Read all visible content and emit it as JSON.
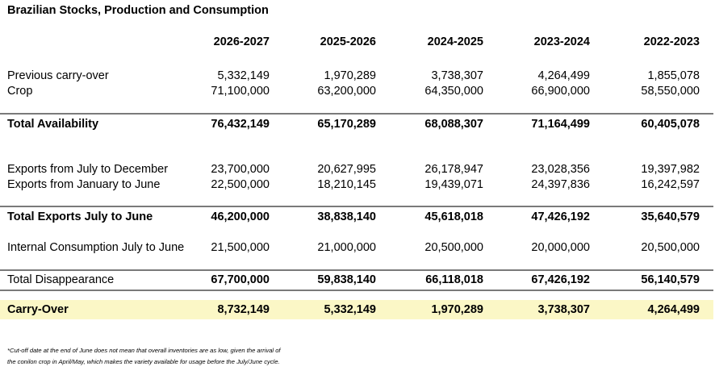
{
  "title": "Brazilian Stocks, Production and Consumption",
  "columns": [
    "2026-2027",
    "2025-2026",
    "2024-2025",
    "2023-2024",
    "2022-2023"
  ],
  "rows": {
    "previous_carry_over": {
      "label": "Previous carry-over",
      "values": [
        "5,332,149",
        "1,970,289",
        "3,738,307",
        "4,264,499",
        "1,855,078"
      ]
    },
    "crop": {
      "label": "Crop",
      "values": [
        "71,100,000",
        "63,200,000",
        "64,350,000",
        "66,900,000",
        "58,550,000"
      ]
    },
    "total_availability": {
      "label": "Total Availability",
      "values": [
        "76,432,149",
        "65,170,289",
        "68,088,307",
        "71,164,499",
        "60,405,078"
      ]
    },
    "exports_jul_dec": {
      "label": "Exports from July to December",
      "values": [
        "23,700,000",
        "20,627,995",
        "26,178,947",
        "23,028,356",
        "19,397,982"
      ]
    },
    "exports_jan_jun": {
      "label": "Exports from January to June",
      "values": [
        "22,500,000",
        "18,210,145",
        "19,439,071",
        "24,397,836",
        "16,242,597"
      ]
    },
    "total_exports": {
      "label": "Total Exports July to June",
      "values": [
        "46,200,000",
        "38,838,140",
        "45,618,018",
        "47,426,192",
        "35,640,579"
      ]
    },
    "internal_consumption": {
      "label": "Internal Consumption July to June",
      "values": [
        "21,500,000",
        "21,000,000",
        "20,500,000",
        "20,000,000",
        "20,500,000"
      ]
    },
    "total_disappearance": {
      "label": "Total Disappearance",
      "values": [
        "67,700,000",
        "59,838,140",
        "66,118,018",
        "67,426,192",
        "56,140,579"
      ]
    },
    "carry_over": {
      "label": "Carry-Over",
      "values": [
        "8,732,149",
        "5,332,149",
        "1,970,289",
        "3,738,307",
        "4,264,499"
      ]
    }
  },
  "footnote": {
    "line1": "*Cut-off date at the end of June does not mean that overall inventories are as low, given the arrival of",
    "line2": "the conilon crop in April/May, which makes the variety available for usage before the July/June cycle."
  },
  "colors": {
    "carry_over_highlight": "#fbf7c6",
    "rule": "#7a7a7a"
  }
}
